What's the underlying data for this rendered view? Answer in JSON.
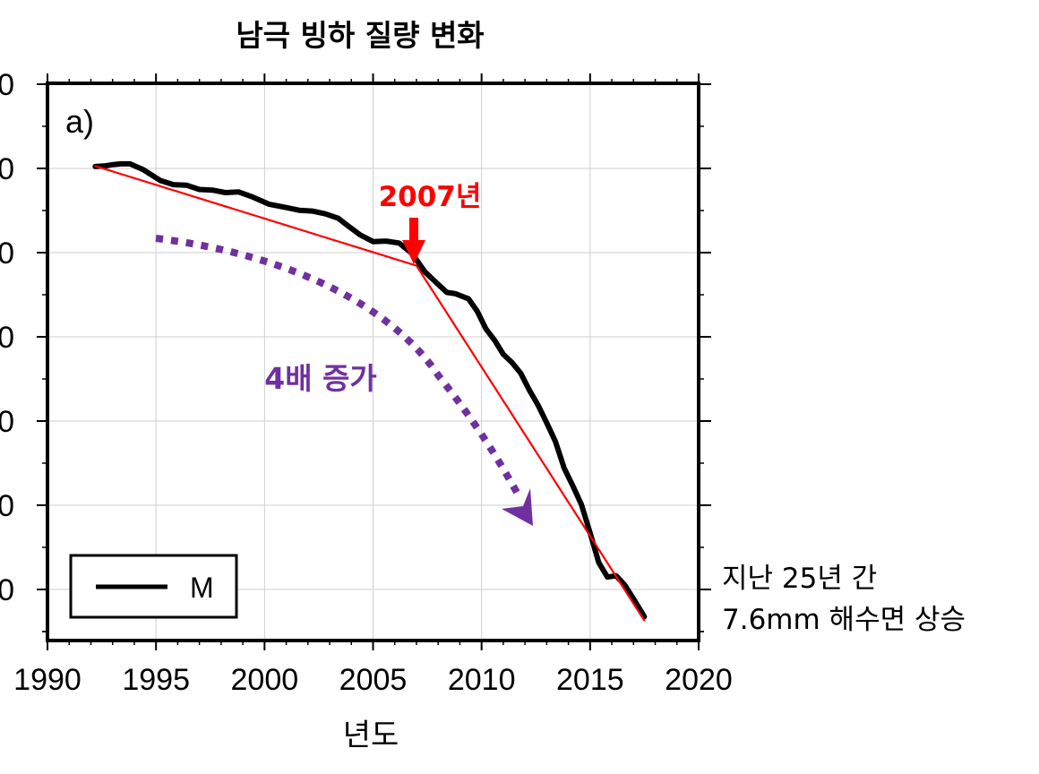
{
  "chart_data": {
    "type": "line",
    "title": "남극 빙하 질량 변화",
    "xlabel": "년도",
    "ylabel": "",
    "panel_label": "a)",
    "xlim": [
      1990,
      2020
    ],
    "x_ticks": [
      1990,
      1995,
      2000,
      2005,
      2010,
      2015,
      2020
    ],
    "x_tick_labels": [
      "1990",
      "1995",
      "2000",
      "2005",
      "2010",
      "2015",
      "2020"
    ],
    "y_tick_labels": [
      "0",
      "0",
      "0",
      "0",
      "0",
      "0",
      "0"
    ],
    "grid": true,
    "legend_position": "bottom-left",
    "series": [
      {
        "name": "M",
        "color": "#000000",
        "x": [
          1992.2,
          1992.6,
          1993.0,
          1993.4,
          1993.8,
          1994.4,
          1995.2,
          1995.8,
          1996.4,
          1997.0,
          1997.6,
          1998.2,
          1998.8,
          1999.4,
          2000.2,
          2001.0,
          2001.6,
          2002.2,
          2002.8,
          2003.4,
          2003.8,
          2004.4,
          2005.0,
          2005.6,
          2006.2,
          2006.8,
          2007.4,
          2008.0,
          2008.4,
          2008.8,
          2009.4,
          2009.8,
          2010.2,
          2010.6,
          2011.0,
          2011.4,
          2011.8,
          2012.2,
          2012.6,
          2013.0,
          2013.4,
          2013.8,
          2014.2,
          2014.6,
          2015.0,
          2015.4,
          2015.8,
          2016.2,
          2016.6,
          2017.0,
          2017.5
        ],
        "y": [
          0.5,
          0.47,
          0.4,
          0.36,
          0.36,
          0.65,
          1.21,
          1.42,
          1.45,
          1.67,
          1.7,
          1.83,
          1.79,
          2.03,
          2.42,
          2.59,
          2.73,
          2.77,
          2.91,
          3.14,
          3.49,
          3.98,
          4.33,
          4.3,
          4.4,
          4.94,
          5.89,
          6.51,
          6.92,
          6.99,
          7.25,
          7.88,
          8.78,
          9.36,
          10.08,
          10.5,
          11.04,
          11.91,
          12.67,
          13.58,
          14.53,
          15.88,
          16.78,
          17.74,
          19.19,
          20.71,
          21.45,
          21.38,
          21.86,
          22.56,
          23.47
        ]
      },
      {
        "name": "",
        "color": "#ff0000",
        "x": [
          1992.2,
          2007.0
        ],
        "y": [
          0.47,
          5.56
        ]
      },
      {
        "name": "",
        "color": "#ff0000",
        "x": [
          2007.0,
          2017.5
        ],
        "y": [
          5.56,
          23.66
        ]
      }
    ],
    "annotations": [
      {
        "text": "2007년",
        "color": "#ff0000"
      },
      {
        "text": "4배 증가",
        "color": "#7030a0"
      },
      {
        "text": "지난 25년 간"
      },
      {
        "text": "7.6mm 해수면 상승"
      }
    ]
  }
}
